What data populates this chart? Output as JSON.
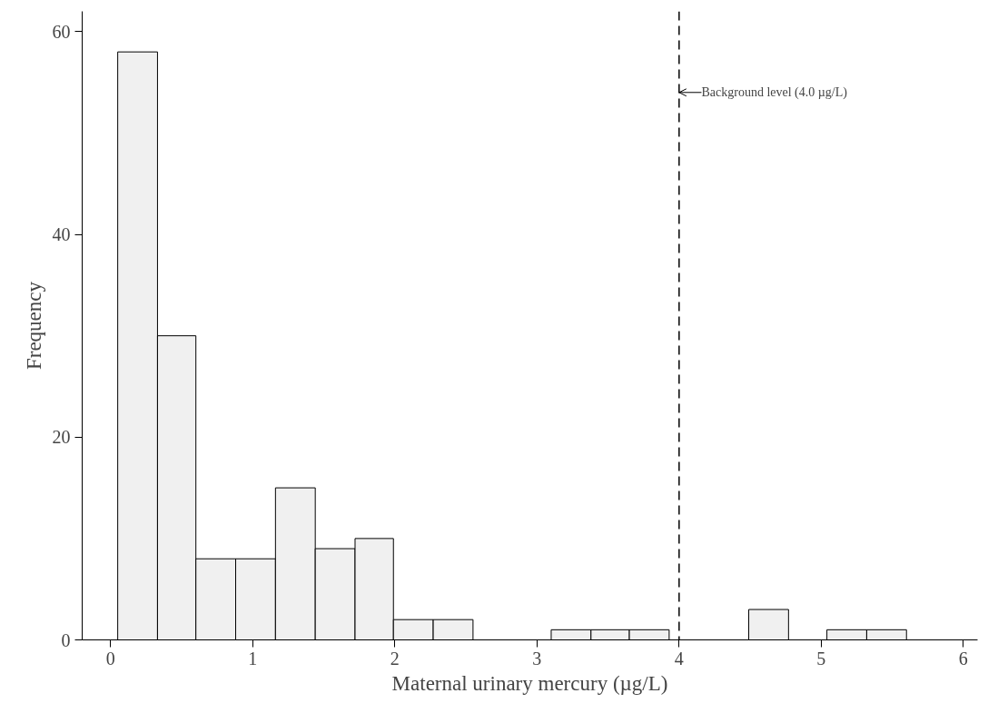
{
  "chart_data": {
    "type": "histogram",
    "xlabel": "Maternal urinary mercury (µg/L)",
    "ylabel": "Frequency",
    "bins": [
      0.05,
      0.33,
      0.6,
      0.88,
      1.16,
      1.44,
      1.72,
      1.99,
      2.27,
      2.55,
      3.1,
      3.38,
      3.65,
      3.93,
      4.49,
      4.77,
      5.04,
      5.32,
      5.6
    ],
    "values": [
      58,
      30,
      8,
      8,
      15,
      9,
      10,
      2,
      2,
      0,
      1,
      1,
      1,
      0,
      3,
      0,
      1,
      1
    ],
    "color": "#f0f0f0",
    "xlim": [
      -0.2,
      6.1
    ],
    "ylim": [
      0,
      62
    ],
    "xticks": [
      0,
      1,
      2,
      3,
      4,
      5,
      6
    ],
    "yticks": [
      0,
      20,
      40,
      60
    ],
    "grid": false,
    "ref_lines": [
      {
        "axis": "x",
        "value": 4,
        "line_style": "dashed",
        "color": "#000000"
      }
    ],
    "annotations": [
      {
        "text": "Background level (4.0 µg/L)",
        "x": 4,
        "y": 54
      }
    ]
  }
}
